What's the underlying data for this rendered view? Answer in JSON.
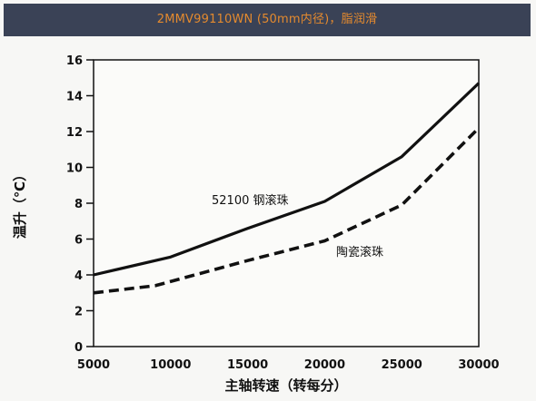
{
  "chart_data": {
    "type": "line",
    "title": "2MMV99110WN (50mm内径)，脂润滑",
    "xlabel": "主轴转速（转每分）",
    "ylabel": "温升（℃）",
    "xlim": [
      5000,
      30000
    ],
    "ylim": [
      0,
      16
    ],
    "x_ticks": [
      5000,
      10000,
      15000,
      20000,
      25000,
      30000
    ],
    "y_ticks": [
      0,
      2,
      4,
      6,
      8,
      10,
      12,
      14,
      16
    ],
    "grid": false,
    "legend": "none",
    "series": [
      {
        "name": "52100 钢滚珠",
        "style": "solid",
        "color": "#111111",
        "x": [
          5000,
          10000,
          15000,
          20000,
          25000,
          30000
        ],
        "y": [
          4.0,
          5.0,
          6.6,
          8.1,
          10.6,
          14.7
        ]
      },
      {
        "name": "陶瓷滚珠",
        "style": "dashed",
        "color": "#111111",
        "x": [
          5000,
          9000,
          15000,
          20000,
          25000,
          30000
        ],
        "y": [
          3.0,
          3.4,
          4.8,
          5.9,
          7.9,
          12.2
        ]
      }
    ]
  }
}
